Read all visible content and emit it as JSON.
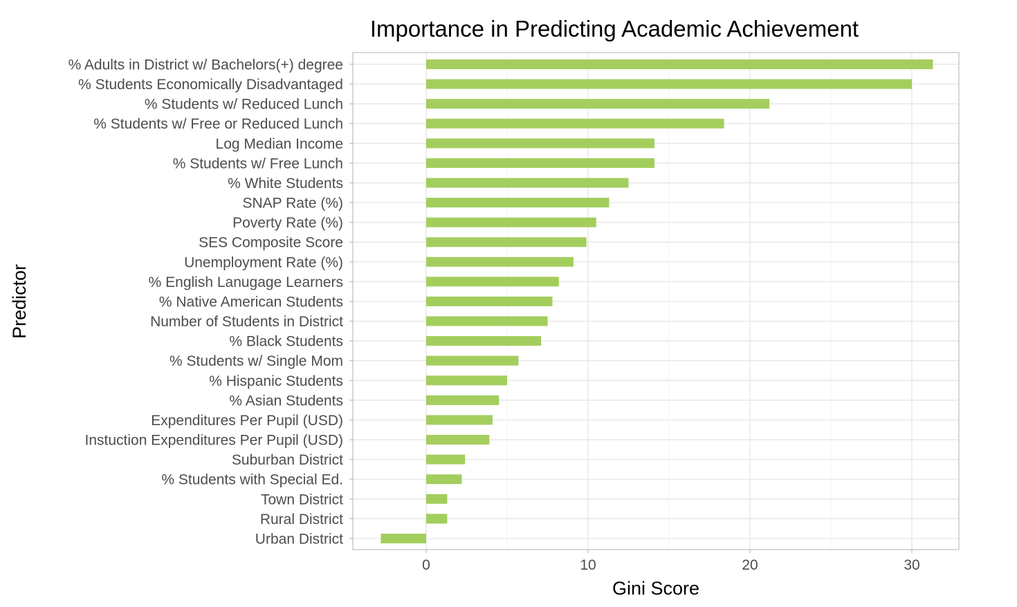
{
  "chart_data": {
    "type": "bar",
    "orientation": "horizontal",
    "title": "Importance in Predicting Academic Achievement",
    "xlabel": "Gini Score",
    "ylabel": "Predictor",
    "xlim": [
      -4.5,
      33
    ],
    "xticks": [
      0,
      10,
      20,
      30
    ],
    "grid": true,
    "bar_color": "#a3ce5d",
    "categories": [
      "% Adults in District w/ Bachelors(+) degree",
      "% Students Economically Disadvantaged",
      "% Students w/ Reduced Lunch",
      "% Students w/ Free or Reduced Lunch",
      "Log  Median Income",
      "% Students w/ Free Lunch",
      "% White Students",
      "SNAP Rate (%)",
      "Poverty Rate (%)",
      "SES Composite Score",
      "Unemployment Rate (%)",
      "% English Lanugage Learners",
      "% Native American Students",
      "Number of Students in District",
      "% Black Students",
      "% Students w/ Single Mom",
      "% Hispanic Students",
      "% Asian Students",
      "Expenditures Per Pupil (USD)",
      "Instuction Expenditures Per Pupil (USD)",
      "Suburban District",
      "% Students with Special Ed.",
      "Town District",
      "Rural District",
      "Urban District"
    ],
    "values": [
      31.3,
      30.0,
      21.2,
      18.4,
      14.1,
      14.1,
      12.5,
      11.3,
      10.5,
      9.9,
      9.1,
      8.2,
      7.8,
      7.5,
      7.1,
      5.7,
      5.0,
      4.5,
      4.1,
      3.9,
      2.4,
      2.2,
      1.3,
      1.3,
      -2.8
    ]
  }
}
